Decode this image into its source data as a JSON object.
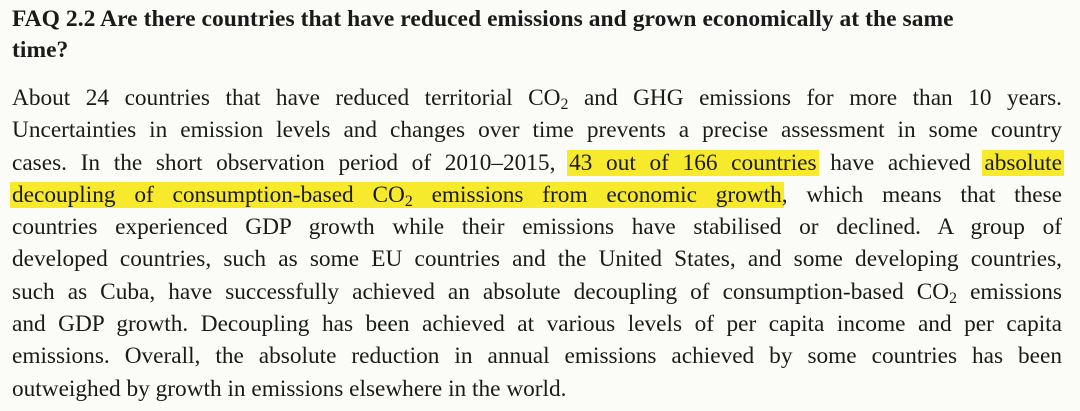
{
  "faq": {
    "title_line1": "FAQ 2.2 Are there countries that have reduced emissions and grown economically at the same",
    "title_line2": "time?",
    "lines": [
      {
        "a": "About 24 countries that have reduced territorial CO",
        "sub": "2",
        "b": " and GHG emissions for more than 10 years."
      },
      {
        "a": "Uncertainties in emission levels and changes over time prevents a precise assessment in some country"
      },
      {
        "a": "cases. In the short observation period of 2010–2015, ",
        "hl1": "43 out of 166 countries",
        "b": " have achieved ",
        "hl2": "absolute"
      },
      {
        "hl_a": "decoupling of consumption-based CO",
        "hl_sub": "2",
        "hl_b": " emissions from economic growth",
        "b": ", which means that these"
      },
      {
        "a": "countries experienced GDP growth while their emissions have stabilised or declined. A group of"
      },
      {
        "a": "developed countries, such as some EU countries and the United States, and some developing countries,"
      },
      {
        "a": "such as Cuba, have successfully achieved an absolute decoupling of consumption-based CO",
        "sub": "2",
        "b": " emissions"
      },
      {
        "a": "and GDP growth. Decoupling has been achieved at various levels of per capita income and per capita"
      },
      {
        "a": "emissions. Overall, the absolute reduction in annual emissions achieved by some countries has been"
      },
      {
        "a": "outweighed by growth in emissions elsewhere in the world."
      }
    ],
    "highlight_color": "#f7ea2c"
  }
}
